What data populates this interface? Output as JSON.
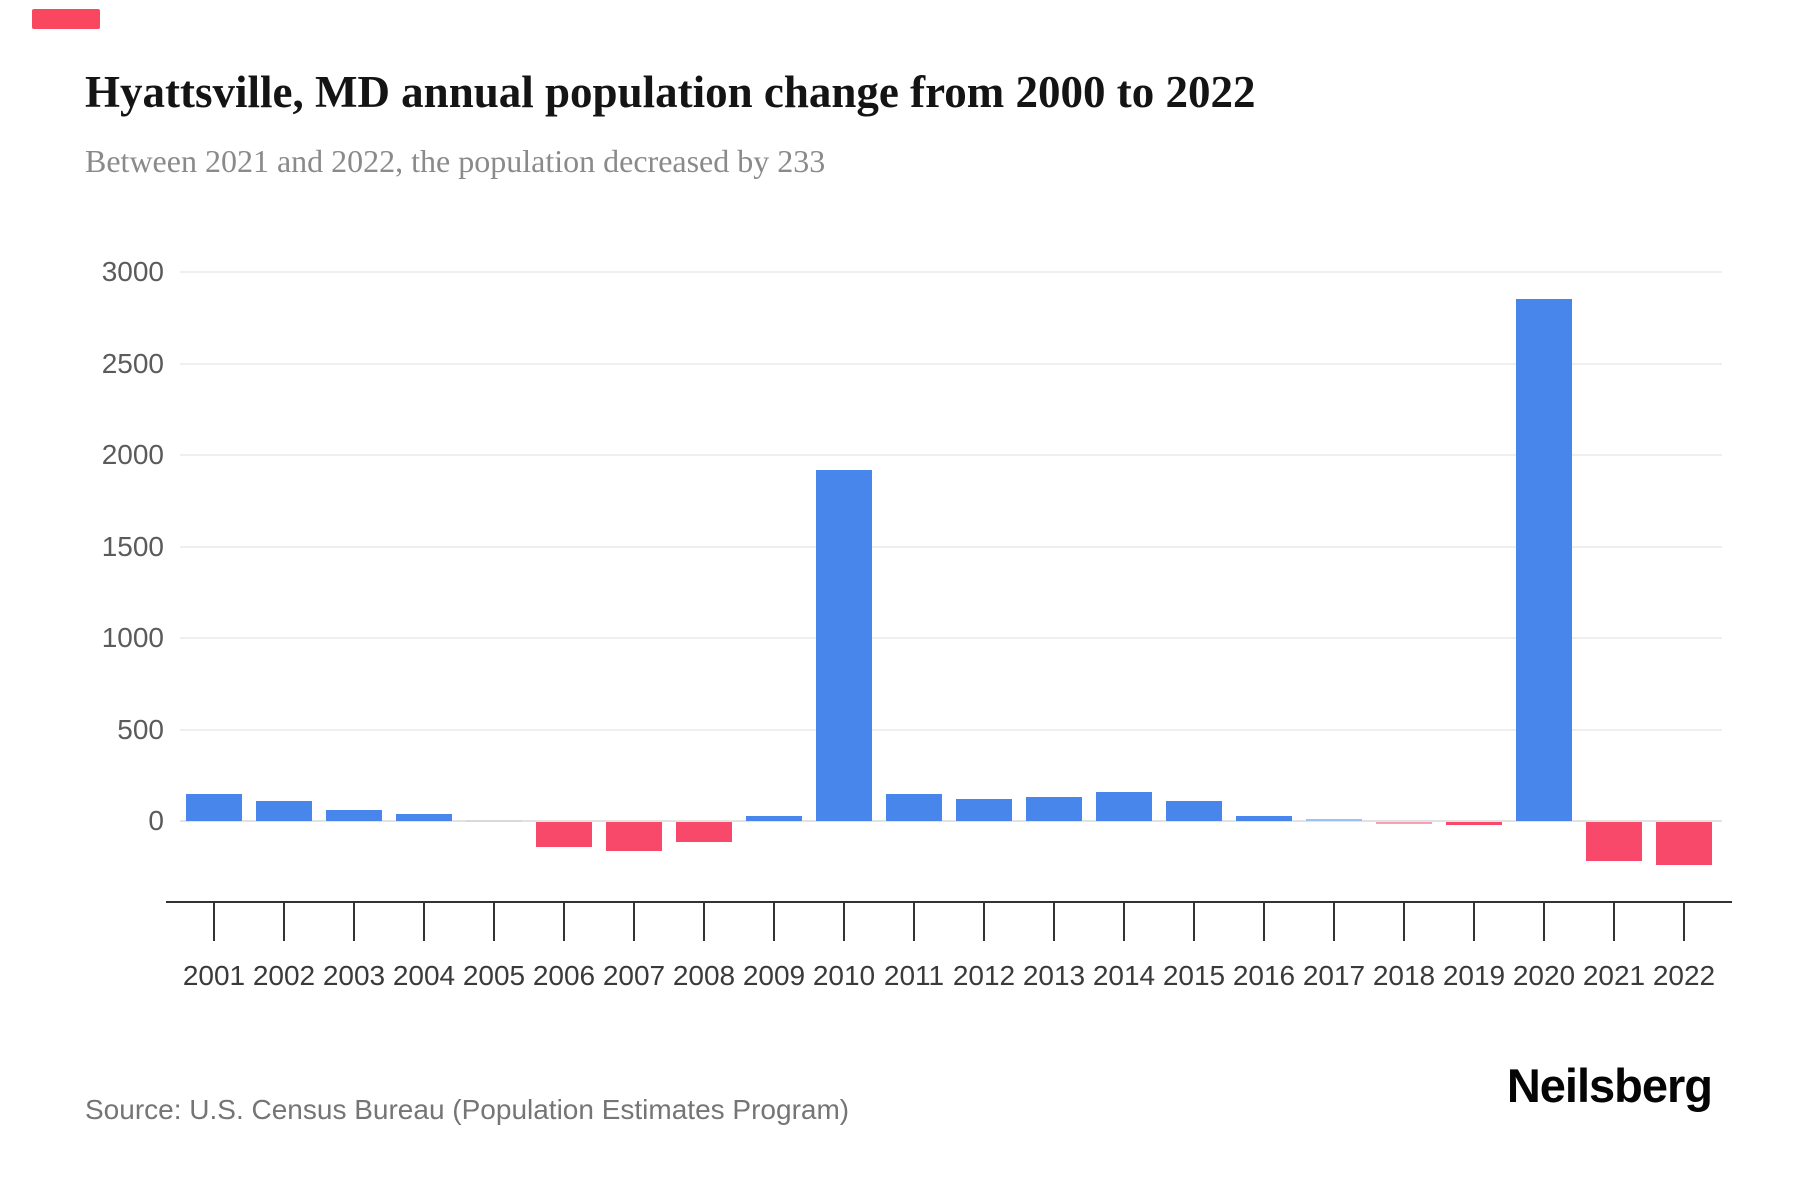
{
  "page": {
    "title": "Hyattsville, MD annual population change from 2000 to 2022",
    "subtitle": "Between 2021 and 2022, the population decreased by 233"
  },
  "footer": {
    "source": "Source: U.S. Census Bureau (Population Estimates Program)",
    "brand": "Neilsberg"
  },
  "colors": {
    "accent": "#f8475e",
    "positive": "#4986ec",
    "positive_light": "#9dc1f5",
    "negative": "#f9496b",
    "negative_light": "#f7a2b4",
    "zero_bar": "#d9d9d9",
    "grid": "#efefef",
    "zero_line": "#e2e2e2",
    "axis": "#333333",
    "title": "#141414",
    "subtitle": "#8a8a8a",
    "source": "#757575",
    "brand": "#050505"
  },
  "chart_data": {
    "type": "bar",
    "title": "Hyattsville, MD annual population change from 2000 to 2022",
    "subtitle": "Between 2021 and 2022, the population decreased by 233",
    "categories": [
      "2001",
      "2002",
      "2003",
      "2004",
      "2005",
      "2006",
      "2007",
      "2008",
      "2009",
      "2010",
      "2011",
      "2012",
      "2013",
      "2014",
      "2015",
      "2016",
      "2017",
      "2018",
      "2019",
      "2020",
      "2021",
      "2022"
    ],
    "values": [
      150,
      110,
      60,
      40,
      0,
      -135,
      -160,
      -110,
      30,
      1917,
      150,
      120,
      130,
      160,
      110,
      25,
      4,
      -8,
      -15,
      2850,
      -215,
      -233
    ],
    "xlabel": "",
    "ylabel": "",
    "yticks": [
      0,
      500,
      1000,
      1500,
      2000,
      2500,
      3000
    ],
    "ylim": [
      -300,
      3000
    ],
    "grid": true,
    "legend": false,
    "annotations": []
  }
}
